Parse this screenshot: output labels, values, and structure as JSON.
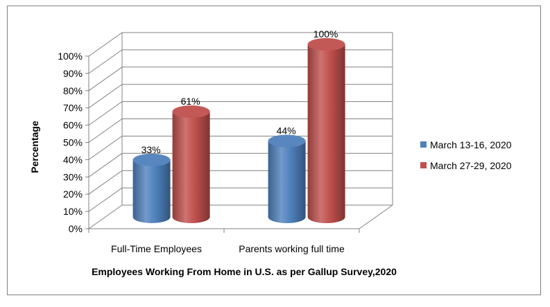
{
  "chart_data": {
    "type": "bar",
    "style": "3d-cylinder",
    "categories": [
      "Full-Time Employees",
      "Parents working full time"
    ],
    "series": [
      {
        "name": "March 13-16, 2020",
        "values": [
          33,
          44
        ],
        "labels": [
          "33%",
          "44%"
        ],
        "color": "#4f81bd"
      },
      {
        "name": "March 27-29, 2020",
        "values": [
          61,
          100
        ],
        "labels": [
          "61%",
          "100%"
        ],
        "color": "#c0504d"
      }
    ],
    "ylabel": "Percentage",
    "xlabel": "Employees Working From Home in U.S. as per Gallup Survey,2020",
    "ylim": [
      0,
      100
    ],
    "yticks": [
      "0%",
      "10%",
      "20%",
      "30%",
      "40%",
      "50%",
      "60%",
      "70%",
      "80%",
      "90%",
      "100%"
    ],
    "grid": true,
    "legend_position": "right"
  }
}
